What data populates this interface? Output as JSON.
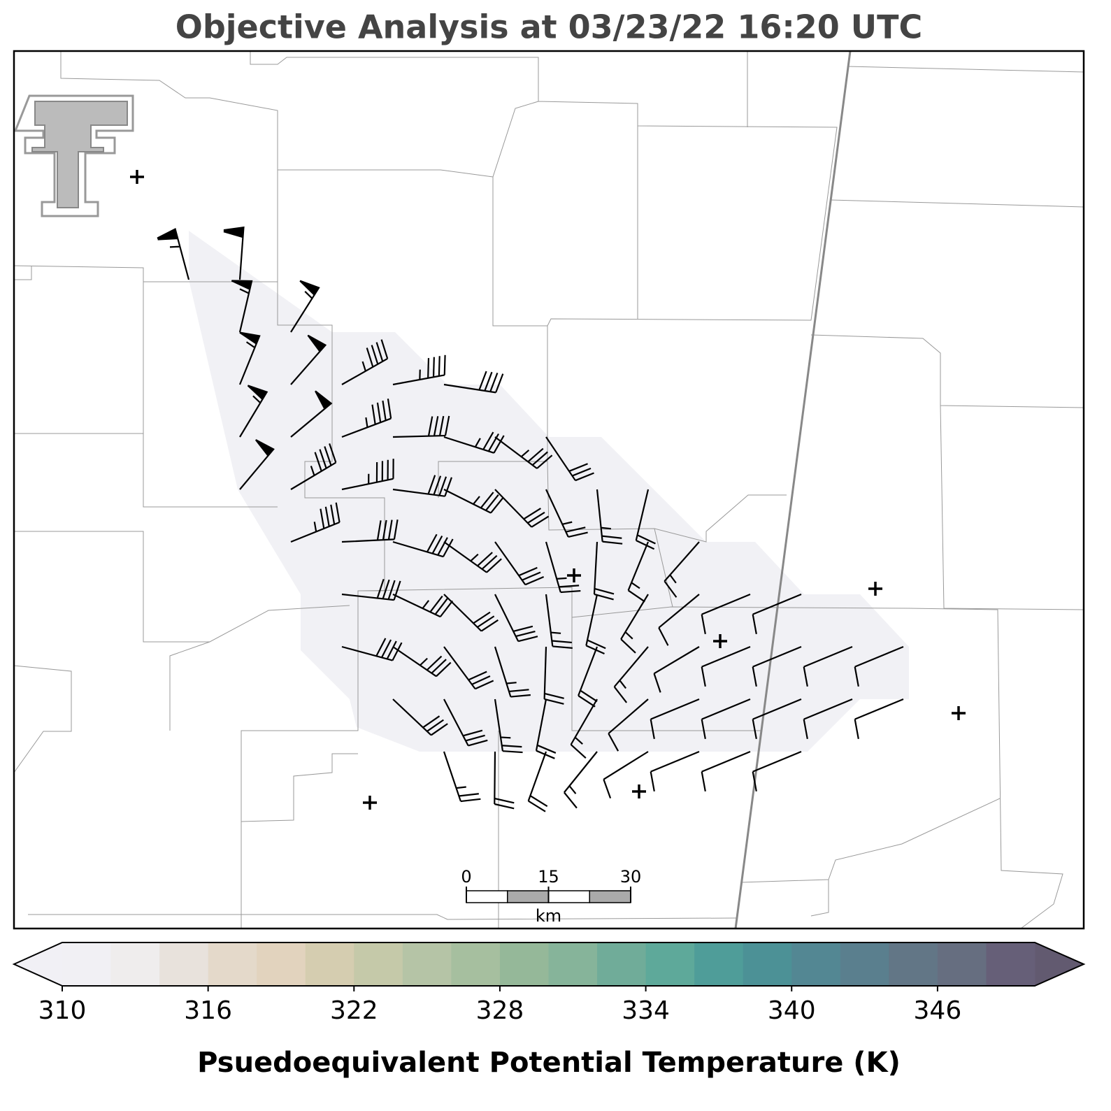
{
  "title": "Objective Analysis at 03/23/22 16:20 UTC",
  "scale_bar": {
    "ticks": [
      0,
      15,
      30
    ],
    "unit": "km"
  },
  "colorbar": {
    "label": "Psuedoequivalent Potential Temperature (K)",
    "lim": [
      310,
      350
    ],
    "ticks": [
      310,
      316,
      322,
      328,
      334,
      340,
      346
    ],
    "colors": [
      "#f1f0f4",
      "#efeded",
      "#e8e2dc",
      "#e4d9ca",
      "#e2d3be",
      "#d5cdb0",
      "#c5c9a9",
      "#b5c4a6",
      "#a6bf9f",
      "#95b899",
      "#86b49a",
      "#70ac99",
      "#5ea99a",
      "#4f9d99",
      "#4c9196",
      "#538793",
      "#5a7f8e",
      "#627686",
      "#666e80",
      "#665f78"
    ],
    "under_color": "#f1f0f5",
    "over_color": "#625a70"
  }
}
